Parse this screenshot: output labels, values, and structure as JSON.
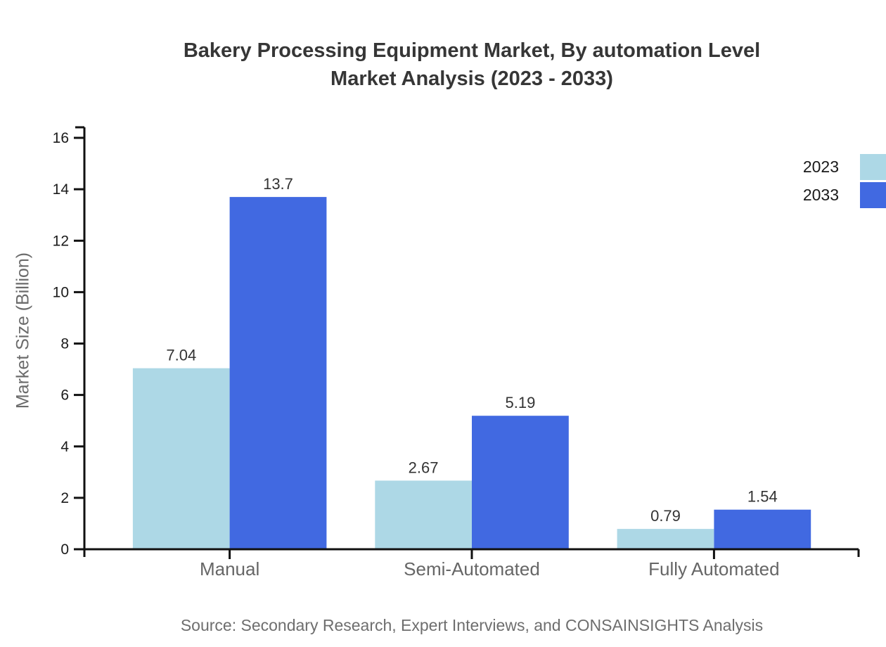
{
  "title": {
    "line1": "Bakery Processing Equipment Market, By automation Level",
    "line2": "Market Analysis (2023 - 2033)"
  },
  "source": "Source: Secondary Research, Expert Interviews, and CONSAINSIGHTS Analysis",
  "colors": {
    "axis": "#111111",
    "title_text": "#363636",
    "tick_label_text": "#1a1a1a",
    "value_label_text": "#333333",
    "category_label_text": "#666666",
    "muted_text": "#6b6b6b"
  },
  "chart_data": {
    "type": "bar",
    "title": "Bakery Processing Equipment Market, By automation Level Market Analysis (2023 - 2033)",
    "categories": [
      "Manual",
      "Semi-Automated",
      "Fully Automated"
    ],
    "series": [
      {
        "name": "2023",
        "color": "#ADD8E6",
        "values": [
          7.04,
          2.67,
          0.79
        ]
      },
      {
        "name": "2033",
        "color": "#4169E1",
        "values": [
          13.7,
          5.19,
          1.54
        ]
      }
    ],
    "value_labels": [
      [
        "7.04",
        "2.67",
        "0.79"
      ],
      [
        "13.7",
        "5.19",
        "1.54"
      ]
    ],
    "xlabel": "",
    "ylabel": "Market Size (Billion)",
    "ylim": [
      0,
      16
    ],
    "yticks": [
      0,
      2,
      4,
      6,
      8,
      10,
      12,
      14,
      16
    ],
    "grid": false,
    "legend_position": "top-right",
    "bar_value_labels": true
  }
}
